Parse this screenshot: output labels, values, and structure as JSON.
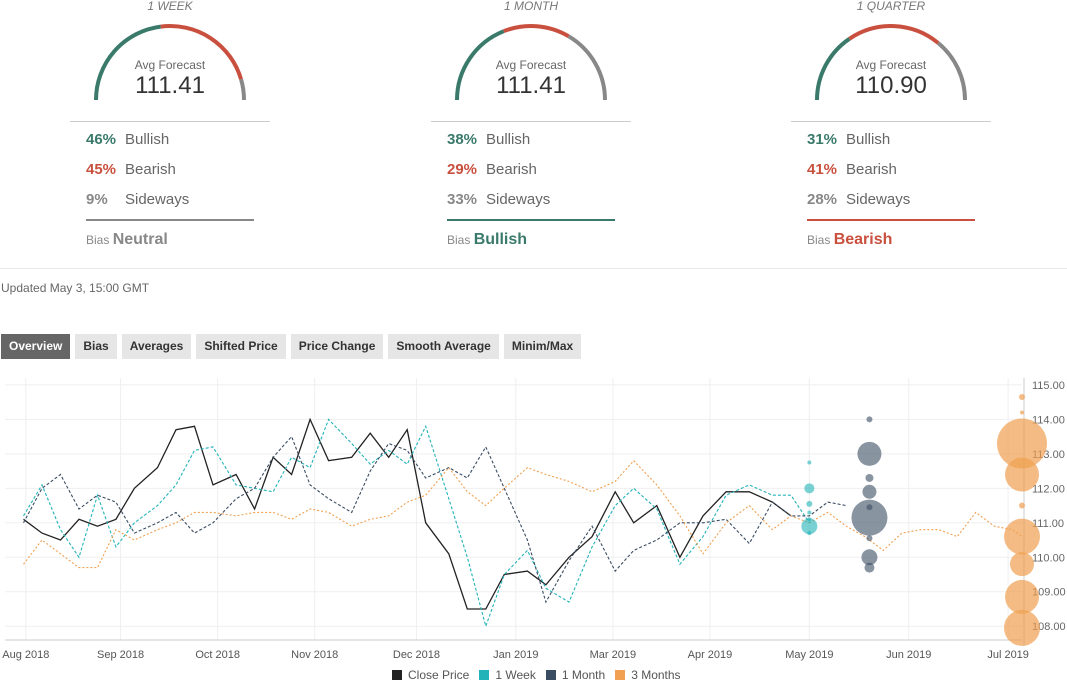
{
  "colors": {
    "bullish": "#3a7a6a",
    "bearish": "#c9503e",
    "neutral": "#888888",
    "close": "#222222",
    "week": "#22b3b8",
    "month": "#3b4d63",
    "quarter": "#f0a050"
  },
  "forecast_panels": [
    {
      "period": "1 WEEK",
      "avg_label": "Avg Forecast",
      "avg_value": "111.41",
      "bullish_pct": "46%",
      "bearish_pct": "45%",
      "sideways_pct": "9%",
      "bullish_label": "Bullish",
      "bearish_label": "Bearish",
      "sideways_label": "Sideways",
      "bias_label": "Bias",
      "bias_value": "Neutral",
      "bias_key": "neutral",
      "gauge": {
        "bullish": 0.46,
        "bearish": 0.45,
        "sideways": 0.09
      }
    },
    {
      "period": "1 MONTH",
      "avg_label": "Avg Forecast",
      "avg_value": "111.41",
      "bullish_pct": "38%",
      "bearish_pct": "29%",
      "sideways_pct": "33%",
      "bullish_label": "Bullish",
      "bearish_label": "Bearish",
      "sideways_label": "Sideways",
      "bias_label": "Bias",
      "bias_value": "Bullish",
      "bias_key": "bullish",
      "gauge": {
        "bullish": 0.38,
        "bearish": 0.29,
        "sideways": 0.33
      }
    },
    {
      "period": "1 QUARTER",
      "avg_label": "Avg Forecast",
      "avg_value": "110.90",
      "bullish_pct": "31%",
      "bearish_pct": "41%",
      "sideways_pct": "28%",
      "bullish_label": "Bullish",
      "bearish_label": "Bearish",
      "sideways_label": "Sideways",
      "bias_label": "Bias",
      "bias_value": "Bearish",
      "bias_key": "bearish",
      "gauge": {
        "bullish": 0.31,
        "bearish": 0.41,
        "sideways": 0.28
      }
    }
  ],
  "updated": "Updated May 3, 15:00 GMT",
  "tabs": [
    "Overview",
    "Bias",
    "Averages",
    "Shifted Price",
    "Price Change",
    "Smooth Average",
    "Minim/Max"
  ],
  "active_tab": 0,
  "chart_data": {
    "type": "line",
    "ylim": [
      107.6,
      115.2
    ],
    "y_ticks": [
      "115.00",
      "114.00",
      "113.00",
      "112.00",
      "111.00",
      "110.00",
      "109.00",
      "108.00"
    ],
    "y_tick_values": [
      115,
      114,
      113,
      112,
      111,
      110,
      109,
      108
    ],
    "x_range": [
      0,
      22
    ],
    "x_ticks": [
      "Aug 2018",
      "Sep 2018",
      "Oct 2018",
      "Nov 2018",
      "Dec 2018",
      "Jan 2019",
      "Mar 2019",
      "Apr 2019",
      "May 2019",
      "Jun 2019",
      "Jul 2019"
    ],
    "x_tick_values": [
      0.45,
      2.5,
      4.6,
      6.7,
      8.9,
      11.05,
      13.15,
      15.25,
      17.4,
      19.55,
      21.7
    ],
    "series": [
      {
        "name": "Close Price",
        "key": "close",
        "style": "solid",
        "x": [
          0.4,
          0.8,
          1.2,
          1.6,
          2.0,
          2.4,
          2.8,
          3.3,
          3.7,
          4.1,
          4.5,
          5.0,
          5.4,
          5.8,
          6.2,
          6.6,
          7.0,
          7.5,
          7.9,
          8.3,
          8.7,
          9.1,
          9.6,
          10.0,
          10.4,
          10.8,
          11.3,
          11.7,
          12.2,
          12.7,
          13.2,
          13.6,
          14.1,
          14.6,
          15.1,
          15.6,
          16.1,
          16.6,
          17.0
        ],
        "y": [
          111.1,
          110.7,
          110.5,
          111.1,
          110.9,
          111.1,
          112.0,
          112.6,
          113.7,
          113.8,
          112.1,
          112.4,
          111.4,
          112.9,
          112.4,
          114.0,
          112.8,
          112.9,
          113.6,
          112.9,
          113.7,
          111.0,
          110.1,
          108.5,
          108.5,
          109.5,
          109.6,
          109.2,
          110.0,
          110.6,
          111.9,
          111.0,
          111.5,
          110.0,
          111.2,
          111.9,
          111.9,
          111.6,
          111.2
        ]
      },
      {
        "name": "1 Week",
        "key": "week",
        "style": "dashed",
        "x": [
          0.4,
          0.8,
          1.2,
          1.6,
          2.0,
          2.4,
          2.8,
          3.3,
          3.7,
          4.1,
          4.5,
          5.0,
          5.4,
          5.8,
          6.2,
          6.6,
          7.0,
          7.5,
          7.9,
          8.3,
          8.7,
          9.1,
          9.6,
          10.0,
          10.4,
          10.8,
          11.3,
          11.7,
          12.2,
          12.7,
          13.2,
          13.6,
          14.1,
          14.6,
          15.1,
          15.6,
          16.1,
          16.6,
          17.0,
          17.4
        ],
        "y": [
          111.2,
          112.1,
          110.8,
          110.0,
          111.8,
          110.3,
          111.0,
          111.5,
          112.1,
          113.1,
          113.2,
          112.1,
          112.0,
          111.9,
          112.9,
          112.6,
          114.0,
          113.3,
          112.7,
          113.1,
          112.7,
          113.8,
          111.7,
          110.0,
          108.0,
          109.5,
          110.2,
          109.1,
          108.7,
          110.3,
          111.5,
          112.0,
          111.4,
          109.8,
          110.6,
          111.8,
          112.1,
          111.8,
          111.8,
          111.0
        ]
      },
      {
        "name": "1 Month",
        "key": "month",
        "style": "dashed",
        "x": [
          0.4,
          0.8,
          1.2,
          1.6,
          2.0,
          2.4,
          2.8,
          3.3,
          3.7,
          4.1,
          4.5,
          5.0,
          5.4,
          5.8,
          6.2,
          6.6,
          7.0,
          7.5,
          7.9,
          8.3,
          8.7,
          9.1,
          9.6,
          10.0,
          10.4,
          10.8,
          11.3,
          11.7,
          12.2,
          12.7,
          13.2,
          13.6,
          14.1,
          14.6,
          15.1,
          15.6,
          16.1,
          16.6,
          17.0,
          17.4,
          17.8,
          18.2
        ],
        "y": [
          111.0,
          112.0,
          112.4,
          111.4,
          111.8,
          111.6,
          110.7,
          111.0,
          111.3,
          110.7,
          111.0,
          111.7,
          112.0,
          112.9,
          113.5,
          112.1,
          111.7,
          111.3,
          112.5,
          113.3,
          113.1,
          112.3,
          112.6,
          112.3,
          113.2,
          112.0,
          110.5,
          108.7,
          109.9,
          110.9,
          109.6,
          110.2,
          110.5,
          111.0,
          111.0,
          111.1,
          110.4,
          111.6,
          111.2,
          111.2,
          111.6,
          111.5
        ]
      },
      {
        "name": "3 Months",
        "key": "quarter",
        "style": "dotted",
        "x": [
          0.4,
          0.8,
          1.2,
          1.6,
          2.0,
          2.4,
          2.8,
          3.3,
          3.7,
          4.1,
          4.5,
          5.0,
          5.4,
          5.8,
          6.2,
          6.6,
          7.0,
          7.5,
          7.9,
          8.3,
          8.7,
          9.1,
          9.6,
          10.0,
          10.4,
          10.8,
          11.3,
          11.7,
          12.2,
          12.7,
          13.2,
          13.6,
          14.1,
          14.6,
          15.1,
          15.6,
          16.1,
          16.6,
          17.0,
          17.4,
          17.8,
          18.2,
          18.6,
          19.0,
          19.4,
          19.8,
          20.2,
          20.6,
          21.0,
          21.4,
          21.8,
          22.0
        ],
        "y": [
          109.8,
          110.5,
          110.1,
          109.7,
          109.7,
          110.8,
          110.5,
          110.8,
          111.0,
          111.3,
          111.3,
          111.2,
          111.3,
          111.3,
          111.1,
          111.4,
          111.3,
          110.9,
          111.1,
          111.2,
          111.6,
          111.8,
          112.6,
          111.9,
          111.5,
          112.0,
          112.6,
          112.4,
          112.2,
          111.9,
          112.2,
          112.8,
          112.1,
          111.2,
          110.1,
          111.0,
          111.5,
          110.8,
          111.2,
          111.0,
          111.3,
          110.9,
          110.6,
          110.2,
          110.7,
          110.8,
          110.8,
          110.6,
          111.3,
          110.9,
          110.8,
          110.6
        ]
      }
    ],
    "bubbles": [
      {
        "key": "week",
        "x": 17.4,
        "points": [
          [
            112.75,
            2
          ],
          [
            112.0,
            5
          ],
          [
            111.55,
            3
          ],
          [
            111.3,
            2
          ],
          [
            111.1,
            2
          ],
          [
            110.9,
            8
          ],
          [
            110.7,
            2
          ]
        ]
      },
      {
        "key": "month",
        "x": 18.7,
        "points": [
          [
            114.0,
            3
          ],
          [
            113.0,
            12
          ],
          [
            112.3,
            4
          ],
          [
            111.9,
            7
          ],
          [
            111.45,
            3
          ],
          [
            111.15,
            18
          ],
          [
            110.55,
            3
          ],
          [
            110.0,
            8
          ],
          [
            109.7,
            5
          ]
        ]
      },
      {
        "key": "quarter",
        "x": 22.0,
        "points": [
          [
            114.65,
            3
          ],
          [
            114.2,
            2
          ],
          [
            113.3,
            25
          ],
          [
            112.4,
            17
          ],
          [
            111.5,
            3
          ],
          [
            110.6,
            18
          ],
          [
            109.8,
            12
          ],
          [
            108.85,
            17
          ],
          [
            107.95,
            18
          ]
        ]
      }
    ]
  }
}
